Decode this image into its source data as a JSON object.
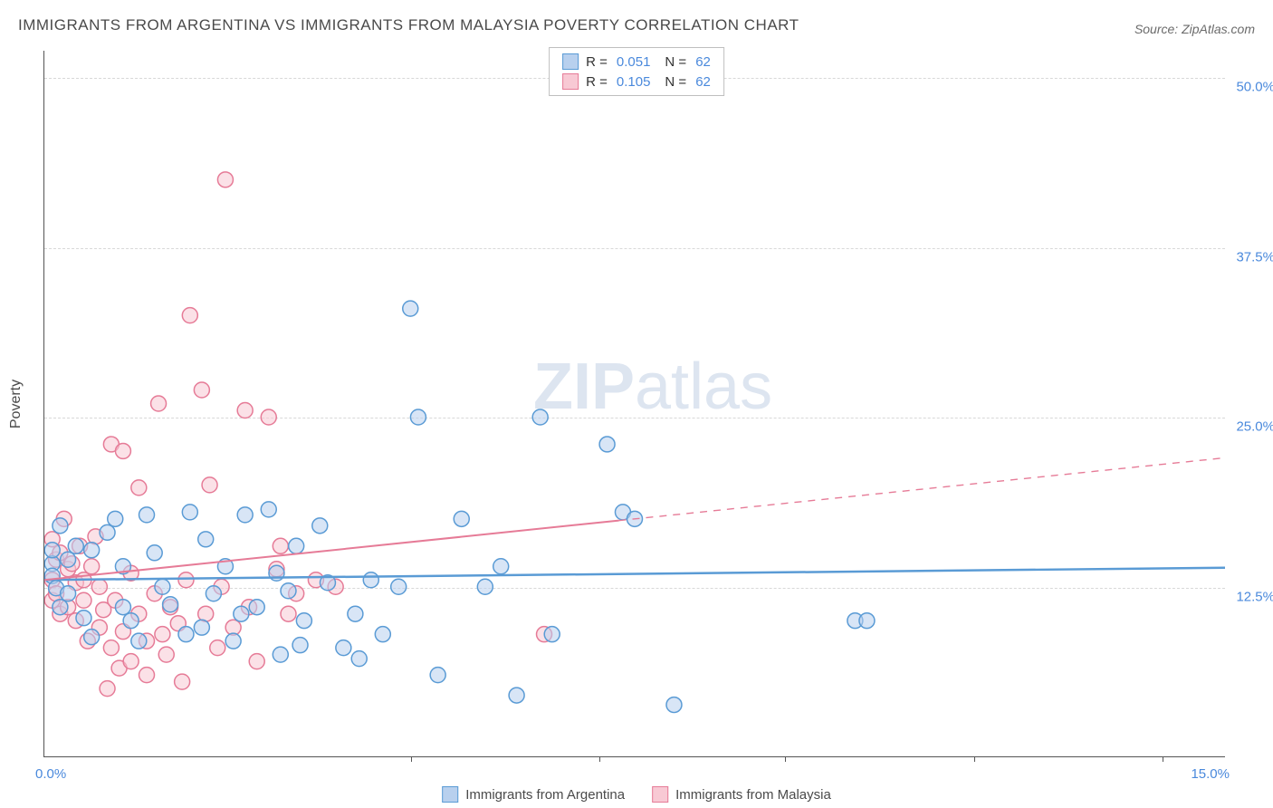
{
  "title": "IMMIGRANTS FROM ARGENTINA VS IMMIGRANTS FROM MALAYSIA POVERTY CORRELATION CHART",
  "source": "Source: ZipAtlas.com",
  "ylabel": "Poverty",
  "watermark": {
    "bold": "ZIP",
    "rest": "atlas"
  },
  "chart": {
    "type": "scatter",
    "xlim": [
      0,
      15
    ],
    "ylim": [
      0,
      52
    ],
    "xticks": [
      {
        "value": 0,
        "label": "0.0%"
      },
      {
        "value": 15,
        "label": "15.0%"
      }
    ],
    "xtick_marks": [
      4.65,
      7.05,
      9.4,
      11.8,
      14.2
    ],
    "yticks": [
      {
        "value": 12.5,
        "label": "12.5%"
      },
      {
        "value": 25.0,
        "label": "25.0%"
      },
      {
        "value": 37.5,
        "label": "37.5%"
      },
      {
        "value": 50.0,
        "label": "50.0%"
      }
    ],
    "ytick_color": "#4a89dc",
    "grid_color": "#d8d8d8",
    "background_color": "#ffffff",
    "marker_radius": 8.5,
    "marker_stroke_width": 1.5,
    "series": [
      {
        "name": "Immigrants from Argentina",
        "fill": "#b8d0ee",
        "stroke": "#5a9bd5",
        "fill_opacity": 0.55,
        "R": "0.051",
        "N": "62",
        "trend": {
          "x1": 0,
          "y1": 13.0,
          "x2": 15,
          "y2": 13.9,
          "solid_until": 15,
          "width": 2.5
        },
        "points": [
          [
            0.1,
            14.2
          ],
          [
            0.1,
            13.3
          ],
          [
            0.1,
            15.2
          ],
          [
            0.15,
            12.4
          ],
          [
            0.2,
            17.0
          ],
          [
            0.2,
            11.0
          ],
          [
            0.3,
            14.5
          ],
          [
            0.3,
            12.0
          ],
          [
            0.4,
            15.5
          ],
          [
            0.5,
            10.2
          ],
          [
            0.6,
            15.2
          ],
          [
            0.6,
            8.8
          ],
          [
            0.8,
            16.5
          ],
          [
            0.9,
            17.5
          ],
          [
            1.0,
            14.0
          ],
          [
            1.0,
            11.0
          ],
          [
            1.1,
            10.0
          ],
          [
            1.2,
            8.5
          ],
          [
            1.3,
            17.8
          ],
          [
            1.4,
            15.0
          ],
          [
            1.5,
            12.5
          ],
          [
            1.6,
            11.2
          ],
          [
            1.8,
            9.0
          ],
          [
            1.85,
            18.0
          ],
          [
            2.0,
            9.5
          ],
          [
            2.05,
            16.0
          ],
          [
            2.15,
            12.0
          ],
          [
            2.3,
            14.0
          ],
          [
            2.4,
            8.5
          ],
          [
            2.5,
            10.5
          ],
          [
            2.55,
            17.8
          ],
          [
            2.7,
            11.0
          ],
          [
            2.85,
            18.2
          ],
          [
            2.95,
            13.5
          ],
          [
            3.0,
            7.5
          ],
          [
            3.1,
            12.2
          ],
          [
            3.2,
            15.5
          ],
          [
            3.25,
            8.2
          ],
          [
            3.3,
            10.0
          ],
          [
            3.5,
            17.0
          ],
          [
            3.6,
            12.8
          ],
          [
            3.8,
            8.0
          ],
          [
            3.95,
            10.5
          ],
          [
            4.0,
            7.2
          ],
          [
            4.15,
            13.0
          ],
          [
            4.3,
            9.0
          ],
          [
            4.5,
            12.5
          ],
          [
            4.65,
            33.0
          ],
          [
            4.75,
            25.0
          ],
          [
            5.0,
            6.0
          ],
          [
            5.3,
            17.5
          ],
          [
            5.6,
            12.5
          ],
          [
            5.8,
            14.0
          ],
          [
            6.0,
            4.5
          ],
          [
            6.3,
            25.0
          ],
          [
            6.45,
            9.0
          ],
          [
            7.15,
            23.0
          ],
          [
            7.35,
            18.0
          ],
          [
            7.5,
            17.5
          ],
          [
            8.0,
            3.8
          ],
          [
            10.3,
            10.0
          ],
          [
            10.45,
            10.0
          ]
        ]
      },
      {
        "name": "Immigrants from Malaysia",
        "fill": "#f8c9d4",
        "stroke": "#e67b97",
        "fill_opacity": 0.55,
        "R": "0.105",
        "N": "62",
        "trend": {
          "x1": 0,
          "y1": 13.0,
          "x2": 15,
          "y2": 22.0,
          "solid_until": 7.3,
          "width": 2
        },
        "points": [
          [
            0.1,
            13.0
          ],
          [
            0.1,
            11.5
          ],
          [
            0.1,
            16.0
          ],
          [
            0.15,
            14.5
          ],
          [
            0.15,
            12.0
          ],
          [
            0.2,
            10.5
          ],
          [
            0.2,
            15.0
          ],
          [
            0.25,
            17.5
          ],
          [
            0.3,
            13.8
          ],
          [
            0.3,
            11.0
          ],
          [
            0.35,
            14.2
          ],
          [
            0.4,
            12.8
          ],
          [
            0.4,
            10.0
          ],
          [
            0.45,
            15.5
          ],
          [
            0.5,
            13.0
          ],
          [
            0.5,
            11.5
          ],
          [
            0.55,
            8.5
          ],
          [
            0.6,
            14.0
          ],
          [
            0.65,
            16.2
          ],
          [
            0.7,
            12.5
          ],
          [
            0.7,
            9.5
          ],
          [
            0.75,
            10.8
          ],
          [
            0.8,
            5.0
          ],
          [
            0.85,
            23.0
          ],
          [
            0.85,
            8.0
          ],
          [
            0.9,
            11.5
          ],
          [
            0.95,
            6.5
          ],
          [
            1.0,
            22.5
          ],
          [
            1.0,
            9.2
          ],
          [
            1.1,
            13.5
          ],
          [
            1.1,
            7.0
          ],
          [
            1.2,
            10.5
          ],
          [
            1.2,
            19.8
          ],
          [
            1.3,
            8.5
          ],
          [
            1.3,
            6.0
          ],
          [
            1.4,
            12.0
          ],
          [
            1.45,
            26.0
          ],
          [
            1.5,
            9.0
          ],
          [
            1.55,
            7.5
          ],
          [
            1.6,
            11.0
          ],
          [
            1.7,
            9.8
          ],
          [
            1.75,
            5.5
          ],
          [
            1.8,
            13.0
          ],
          [
            1.85,
            32.5
          ],
          [
            2.0,
            27.0
          ],
          [
            2.05,
            10.5
          ],
          [
            2.1,
            20.0
          ],
          [
            2.2,
            8.0
          ],
          [
            2.25,
            12.5
          ],
          [
            2.3,
            42.5
          ],
          [
            2.4,
            9.5
          ],
          [
            2.55,
            25.5
          ],
          [
            2.6,
            11.0
          ],
          [
            2.7,
            7.0
          ],
          [
            2.85,
            25.0
          ],
          [
            2.95,
            13.8
          ],
          [
            3.0,
            15.5
          ],
          [
            3.1,
            10.5
          ],
          [
            3.2,
            12.0
          ],
          [
            3.45,
            13.0
          ],
          [
            3.7,
            12.5
          ],
          [
            6.35,
            9.0
          ]
        ]
      }
    ]
  },
  "legend_bottom": [
    {
      "label": "Immigrants from Argentina",
      "fill": "#b8d0ee",
      "stroke": "#5a9bd5"
    },
    {
      "label": "Immigrants from Malaysia",
      "fill": "#f8c9d4",
      "stroke": "#e67b97"
    }
  ]
}
